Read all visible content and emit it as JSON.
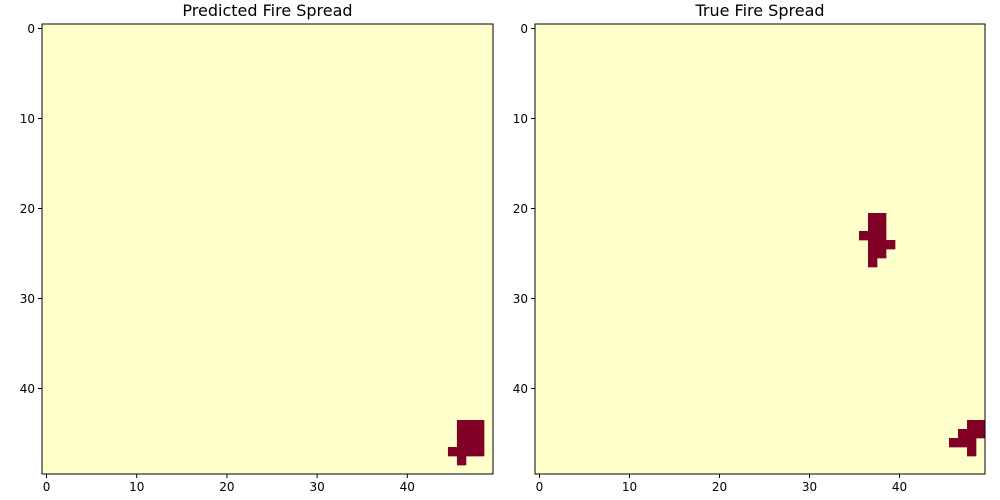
{
  "chart_data": [
    {
      "type": "heatmap",
      "title": "Predicted Fire Spread",
      "grid_size": [
        50,
        50
      ],
      "xlim": [
        -0.5,
        49.5
      ],
      "ylim": [
        49.5,
        -0.5
      ],
      "x_ticks": [
        0,
        10,
        20,
        30,
        40
      ],
      "y_ticks": [
        0,
        10,
        20,
        30,
        40
      ],
      "colors": {
        "background": "#ffffcc",
        "fire": "#800026"
      },
      "burning_cells": [
        [
          44,
          46
        ],
        [
          44,
          47
        ],
        [
          44,
          48
        ],
        [
          45,
          46
        ],
        [
          45,
          47
        ],
        [
          45,
          48
        ],
        [
          46,
          46
        ],
        [
          46,
          47
        ],
        [
          46,
          48
        ],
        [
          47,
          45
        ],
        [
          47,
          46
        ],
        [
          47,
          47
        ],
        [
          47,
          48
        ],
        [
          48,
          46
        ]
      ]
    },
    {
      "type": "heatmap",
      "title": "True Fire Spread",
      "grid_size": [
        50,
        50
      ],
      "xlim": [
        -0.5,
        49.5
      ],
      "ylim": [
        49.5,
        -0.5
      ],
      "x_ticks": [
        0,
        10,
        20,
        30,
        40
      ],
      "y_ticks": [
        0,
        10,
        20,
        30,
        40
      ],
      "colors": {
        "background": "#ffffcc",
        "fire": "#800026"
      },
      "burning_cells": [
        [
          21,
          37
        ],
        [
          21,
          38
        ],
        [
          22,
          37
        ],
        [
          22,
          38
        ],
        [
          23,
          36
        ],
        [
          23,
          37
        ],
        [
          23,
          38
        ],
        [
          24,
          37
        ],
        [
          24,
          38
        ],
        [
          24,
          39
        ],
        [
          25,
          37
        ],
        [
          25,
          38
        ],
        [
          26,
          37
        ],
        [
          44,
          48
        ],
        [
          44,
          49
        ],
        [
          45,
          47
        ],
        [
          45,
          48
        ],
        [
          45,
          49
        ],
        [
          46,
          46
        ],
        [
          46,
          47
        ],
        [
          46,
          48
        ],
        [
          47,
          48
        ]
      ]
    }
  ]
}
